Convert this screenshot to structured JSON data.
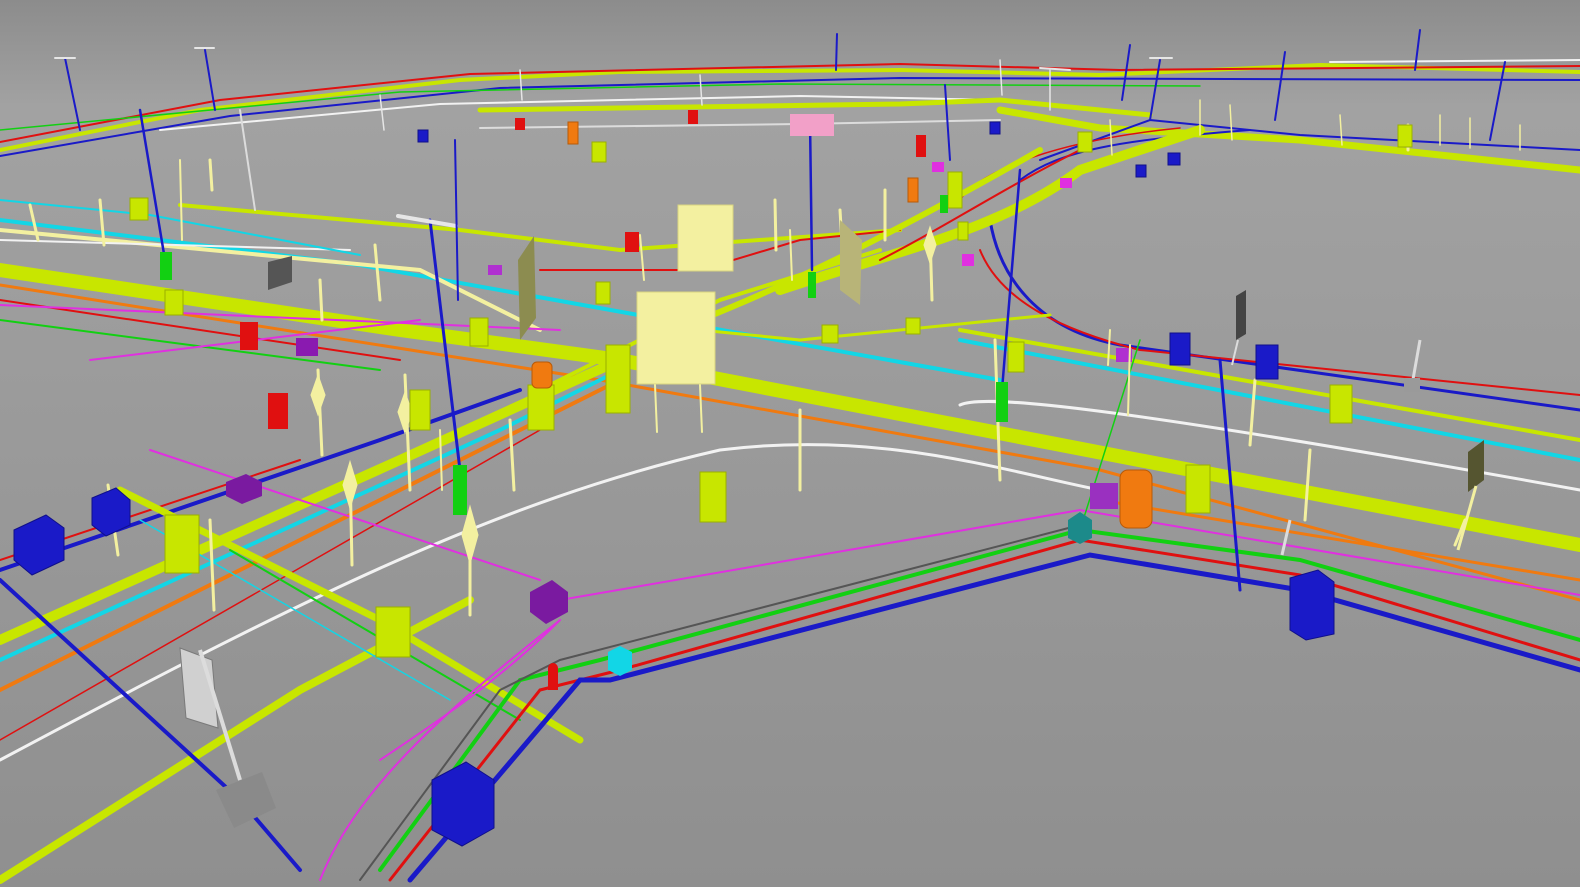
{
  "scene": {
    "description_visible_text": "",
    "colors": {
      "ground_far": "#9a9a9a",
      "ground_near": "#8d8d8d",
      "sky": "#8a8a8a",
      "yellow_green": "#c8e600",
      "pale_yellow": "#f3f0a0",
      "blue": "#1a1ac8",
      "cyan": "#12d6e6",
      "red": "#e01010",
      "orange": "#f07a10",
      "magenta": "#e030e0",
      "purple": "#7a1aa0",
      "green": "#12d012",
      "white": "#f2f2f2",
      "dark_gray": "#555555",
      "olive": "#8c8c50",
      "pink": "#f2a0c8",
      "teal": "#1c8a8a"
    },
    "utility_networks": [
      {
        "name": "yellow-green-main",
        "color": "yellow_green"
      },
      {
        "name": "blue-line",
        "color": "blue"
      },
      {
        "name": "cyan-line",
        "color": "cyan"
      },
      {
        "name": "red-line",
        "color": "red"
      },
      {
        "name": "orange-line",
        "color": "orange"
      },
      {
        "name": "magenta-line",
        "color": "magenta"
      },
      {
        "name": "green-line",
        "color": "green"
      },
      {
        "name": "white-line",
        "color": "white"
      }
    ],
    "icons": [
      "light-pole-icon",
      "marker-post-icon",
      "utility-box-icon",
      "hydrant-icon",
      "sign-board-icon"
    ]
  }
}
